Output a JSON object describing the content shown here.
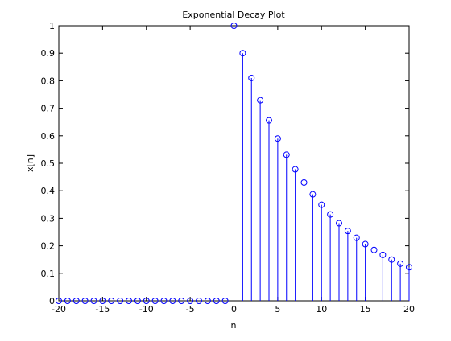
{
  "chart_data": {
    "type": "stem",
    "title": "Exponential Decay Plot",
    "xlabel": "n",
    "ylabel": "x[n]",
    "xlim": [
      -20,
      20
    ],
    "ylim": [
      0,
      1
    ],
    "xticks": [
      -20,
      -15,
      -10,
      -5,
      0,
      5,
      10,
      15,
      20
    ],
    "yticks": [
      0,
      0.1,
      0.2,
      0.3,
      0.4,
      0.5,
      0.6,
      0.7,
      0.8,
      0.9,
      1
    ],
    "xtick_labels": [
      "-20",
      "-15",
      "-10",
      "-5",
      "0",
      "5",
      "10",
      "15",
      "20"
    ],
    "ytick_labels": [
      "0",
      "0.1",
      "0.2",
      "0.3",
      "0.4",
      "0.5",
      "0.6",
      "0.7",
      "0.8",
      "0.9",
      "1"
    ],
    "grid": false,
    "color": "#0000ff",
    "x": [
      -20,
      -19,
      -18,
      -17,
      -16,
      -15,
      -14,
      -13,
      -12,
      -11,
      -10,
      -9,
      -8,
      -7,
      -6,
      -5,
      -4,
      -3,
      -2,
      -1,
      0,
      1,
      2,
      3,
      4,
      5,
      6,
      7,
      8,
      9,
      10,
      11,
      12,
      13,
      14,
      15,
      16,
      17,
      18,
      19,
      20
    ],
    "y": [
      0,
      0,
      0,
      0,
      0,
      0,
      0,
      0,
      0,
      0,
      0,
      0,
      0,
      0,
      0,
      0,
      0,
      0,
      0,
      0,
      1,
      0.9,
      0.81,
      0.729,
      0.656,
      0.59,
      0.531,
      0.478,
      0.43,
      0.387,
      0.349,
      0.314,
      0.282,
      0.254,
      0.229,
      0.206,
      0.185,
      0.167,
      0.15,
      0.135,
      0.122
    ]
  }
}
